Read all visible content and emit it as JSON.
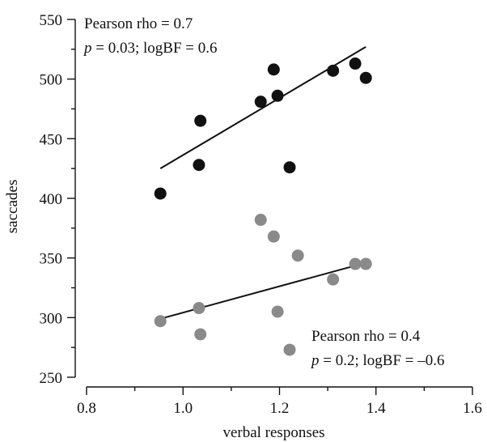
{
  "chart_data": {
    "type": "scatter",
    "xlabel": "verbal responses",
    "ylabel": "saccades",
    "xlim": [
      0.8,
      1.6
    ],
    "ylim": [
      250,
      550
    ],
    "xticks": [
      "0.8",
      "1.0",
      "1.2",
      "1.4",
      "1.6"
    ],
    "xticks_values": [
      0.8,
      1.0,
      1.2,
      1.4,
      1.6
    ],
    "yticks": [
      "250",
      "300",
      "350",
      "400",
      "450",
      "500",
      "550"
    ],
    "yticks_values": [
      250,
      300,
      350,
      400,
      450,
      500,
      550
    ],
    "grid": false,
    "series": [
      {
        "color": "#111111",
        "points": [
          {
            "x": 0.953,
            "y": 404
          },
          {
            "x": 1.033,
            "y": 428
          },
          {
            "x": 1.036,
            "y": 465
          },
          {
            "x": 1.161,
            "y": 481
          },
          {
            "x": 1.188,
            "y": 508
          },
          {
            "x": 1.196,
            "y": 486
          },
          {
            "x": 1.221,
            "y": 426
          },
          {
            "x": 1.311,
            "y": 507
          },
          {
            "x": 1.357,
            "y": 513
          },
          {
            "x": 1.379,
            "y": 501
          }
        ],
        "fit": {
          "x": [
            0.953,
            1.379
          ],
          "y": [
            425,
            527
          ]
        },
        "annotation": {
          "line1": "Pearson rho = 0.7",
          "line2_p": "p",
          "line2_rest": " = 0.03; logBF = 0.6"
        }
      },
      {
        "color": "#8a8a8a",
        "points": [
          {
            "x": 0.953,
            "y": 297
          },
          {
            "x": 1.033,
            "y": 308
          },
          {
            "x": 1.036,
            "y": 286
          },
          {
            "x": 1.161,
            "y": 382
          },
          {
            "x": 1.188,
            "y": 368
          },
          {
            "x": 1.196,
            "y": 305
          },
          {
            "x": 1.221,
            "y": 273
          },
          {
            "x": 1.238,
            "y": 352
          },
          {
            "x": 1.311,
            "y": 332
          },
          {
            "x": 1.357,
            "y": 345
          },
          {
            "x": 1.379,
            "y": 345
          }
        ],
        "fit": {
          "x": [
            0.953,
            1.379
          ],
          "y": [
            299,
            346
          ]
        },
        "annotation": {
          "line1": "Pearson rho = 0.4",
          "line2_p": "p",
          "line2_rest": " = 0.2; logBF = –0.6"
        }
      }
    ]
  }
}
